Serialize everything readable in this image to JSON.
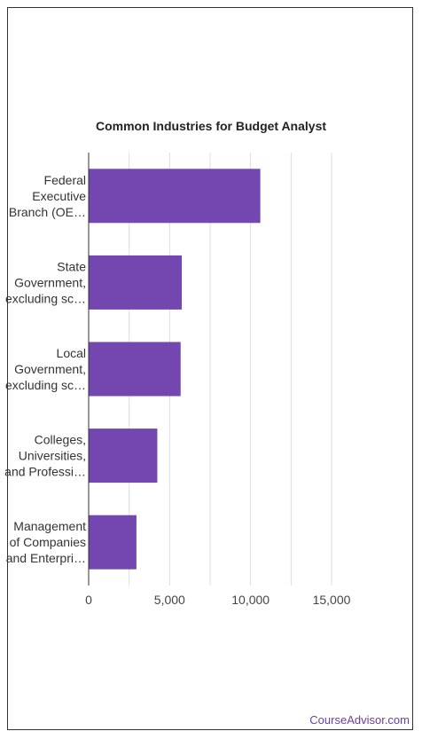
{
  "chart_data": {
    "type": "bar",
    "orientation": "horizontal",
    "title": "Common Industries for Budget Analyst",
    "categories": [
      [
        "Federal",
        "Executive",
        "Branch (OE…"
      ],
      [
        "State",
        "Government,",
        "excluding sc…"
      ],
      [
        "Local",
        "Government,",
        "excluding sc…"
      ],
      [
        "Colleges,",
        "Universities,",
        "and Professi…"
      ],
      [
        "Management",
        "of Companies",
        "and Enterpri…"
      ]
    ],
    "values": [
      10600,
      5750,
      5680,
      4240,
      2950
    ],
    "xlim": [
      0,
      15000
    ],
    "xticks": [
      0,
      5000,
      10000,
      15000
    ],
    "xtick_labels": [
      "0",
      "5,000",
      "10,000",
      "15,000"
    ],
    "grid": true,
    "bar_color": "#7446b0"
  },
  "footer": {
    "brand": "CourseAdvisor.com",
    "brand_color": "#6b3fa0"
  }
}
